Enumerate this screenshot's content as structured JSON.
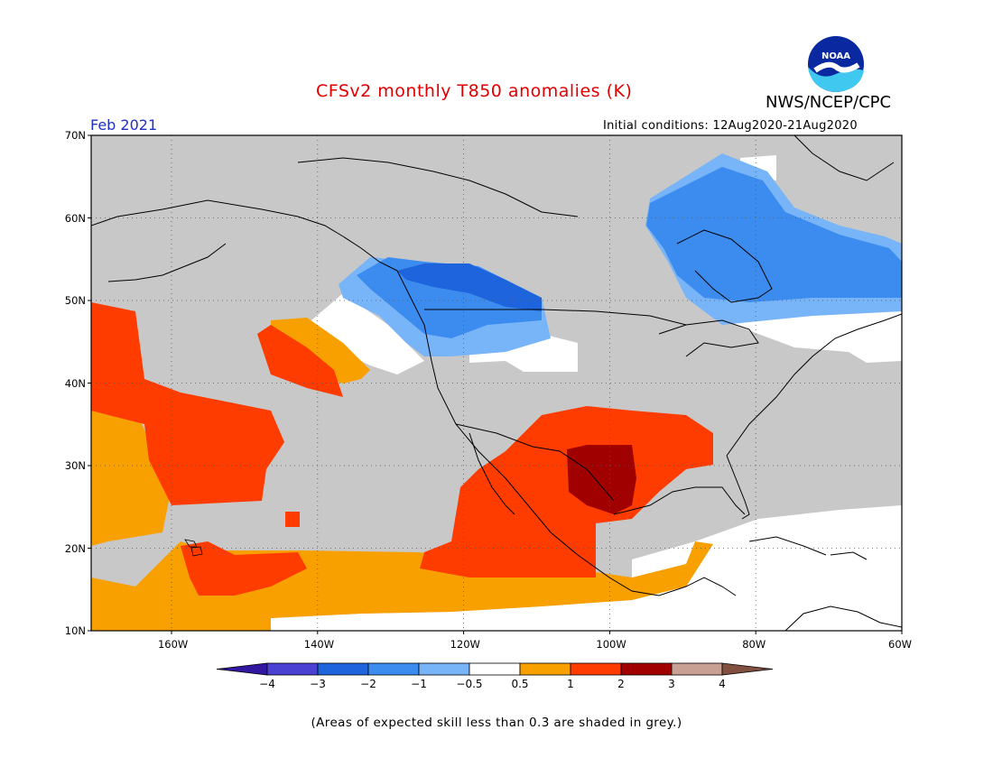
{
  "header": {
    "title": "CFSv2 monthly T850 anomalies (K)",
    "org": "NWS/NCEP/CPC",
    "month": "Feb 2021",
    "initial_conditions": "Initial conditions: 12Aug2020-21Aug2020",
    "logo_text": "NOAA"
  },
  "map": {
    "lon_range": [
      -171,
      -60
    ],
    "lat_range": [
      10,
      70
    ],
    "lat_labels": [
      {
        "lat": 70,
        "label": "70N"
      },
      {
        "lat": 60,
        "label": "60N"
      },
      {
        "lat": 50,
        "label": "50N"
      },
      {
        "lat": 40,
        "label": "40N"
      },
      {
        "lat": 30,
        "label": "30N"
      },
      {
        "lat": 20,
        "label": "20N"
      },
      {
        "lat": 10,
        "label": "10N"
      }
    ],
    "lon_labels": [
      {
        "lon": -160,
        "label": "160W"
      },
      {
        "lon": -140,
        "label": "140W"
      },
      {
        "lon": -120,
        "label": "120W"
      },
      {
        "lon": -100,
        "label": "100W"
      },
      {
        "lon": -80,
        "label": "80W"
      },
      {
        "lon": -60,
        "label": "60W"
      }
    ],
    "colors": {
      "grey_low_skill": "#c8c8c8",
      "n4": "#3218a0",
      "n3": "#4a40d2",
      "n2": "#1e64dc",
      "n1": "#3c8cf0",
      "n05": "#78b4f8",
      "neutral": "#ffffff",
      "p05": "#f8a000",
      "p1": "#ff3c00",
      "p2": "#a00000",
      "p3": "#c8a094",
      "p4": "#825041"
    }
  },
  "colorbar": {
    "labels": [
      "−4",
      "−3",
      "−2",
      "−1",
      "−0.5",
      "0.5",
      "1",
      "2",
      "3",
      "4"
    ],
    "colors": [
      "#3218a0",
      "#4a40d2",
      "#1e64dc",
      "#3c8cf0",
      "#78b4f8",
      "#ffffff",
      "#f8a000",
      "#ff3c00",
      "#a00000",
      "#c8a094",
      "#825041"
    ]
  },
  "footer_note": "(Areas of expected skill less than 0.3 are shaded in grey.)"
}
